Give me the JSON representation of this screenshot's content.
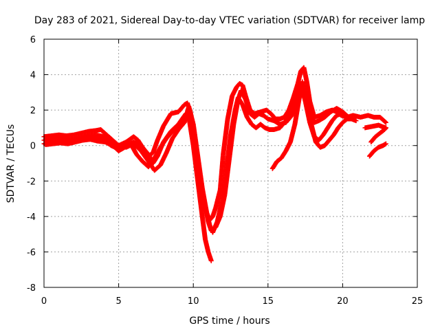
{
  "chart_data": {
    "type": "scatter",
    "title": "Day 283 of 2021, Sidereal Day-to-day VTEC variation (SDTVAR) for receiver lamp",
    "xlabel": "GPS time / hours",
    "ylabel": "SDTVAR / TECUs",
    "xlim": [
      0,
      25
    ],
    "ylim": [
      -8,
      6
    ],
    "xticks": [
      "0",
      "5",
      "10",
      "15",
      "20",
      "25"
    ],
    "yticks": [
      "-8",
      "-6",
      "-4",
      "-2",
      "0",
      "2",
      "4",
      "6"
    ],
    "grid": true,
    "marker": "plus",
    "color": "#ff0000",
    "series": [
      {
        "x": [
          0.0,
          0.5,
          1.0,
          1.5,
          2.0,
          2.5,
          3.0,
          3.5,
          3.8,
          4.2,
          4.6,
          5.0,
          5.5,
          6.0,
          6.3,
          6.6,
          7.0,
          7.3,
          7.6,
          8.0,
          8.5,
          9.0,
          9.4,
          9.6,
          9.8,
          10.0,
          10.3,
          10.6,
          10.9,
          11.1,
          11.3,
          11.5,
          11.8,
          12.0,
          12.3,
          12.6,
          12.9,
          13.1,
          13.3,
          13.5,
          13.8,
          14.1,
          14.5,
          14.9,
          15.2,
          15.5,
          15.8,
          16.1,
          16.4,
          16.7,
          17.0,
          17.2,
          17.4,
          17.6,
          17.8,
          18.1,
          18.5,
          18.9,
          19.3,
          19.6,
          19.9,
          20.3,
          20.7,
          21.2,
          21.7,
          22.1,
          22.5,
          22.9
        ],
        "y": [
          0.5,
          0.55,
          0.6,
          0.55,
          0.6,
          0.7,
          0.8,
          0.85,
          0.9,
          0.6,
          0.3,
          0.0,
          0.2,
          0.5,
          0.3,
          -0.1,
          -0.6,
          -0.4,
          0.3,
          1.1,
          1.8,
          1.9,
          2.3,
          2.4,
          1.9,
          0.8,
          -1.0,
          -2.6,
          -3.8,
          -4.2,
          -4.0,
          -3.5,
          -2.5,
          -0.5,
          1.5,
          2.8,
          3.3,
          3.5,
          3.4,
          2.8,
          2.0,
          1.8,
          1.9,
          2.0,
          1.8,
          1.5,
          1.5,
          1.6,
          2.0,
          2.7,
          3.5,
          4.2,
          4.4,
          3.6,
          2.5,
          1.6,
          1.7,
          1.9,
          2.0,
          1.9,
          1.7,
          1.6,
          1.7,
          1.6,
          1.7,
          1.6,
          1.6,
          1.3
        ]
      },
      {
        "x": [
          0.0,
          0.5,
          1.0,
          1.5,
          2.0,
          2.5,
          3.0,
          3.5,
          4.0,
          4.5,
          5.0,
          5.5,
          6.0,
          6.5,
          7.0,
          7.3,
          7.6,
          8.0,
          8.5,
          9.0,
          9.5,
          9.8,
          10.1,
          10.4,
          10.7,
          11.0,
          11.2,
          11.5,
          11.8,
          12.1,
          12.4,
          12.7,
          13.0,
          13.2,
          13.5,
          13.8,
          14.1,
          14.4,
          14.7,
          15.0,
          15.4,
          15.8,
          16.2,
          16.6,
          16.9,
          17.2,
          17.5,
          17.8,
          18.1,
          18.4,
          18.8,
          19.2,
          19.6,
          20.0,
          20.4
        ],
        "y": [
          0.1,
          0.2,
          0.25,
          0.2,
          0.3,
          0.4,
          0.5,
          0.45,
          0.3,
          0.0,
          -0.2,
          0.0,
          0.2,
          0.0,
          -0.5,
          -1.0,
          -0.6,
          0.2,
          0.8,
          1.2,
          1.8,
          1.5,
          0.5,
          -1.4,
          -3.0,
          -4.3,
          -4.8,
          -4.6,
          -4.0,
          -2.8,
          -0.8,
          1.2,
          2.6,
          3.1,
          2.6,
          1.8,
          1.6,
          1.8,
          1.7,
          1.5,
          1.4,
          1.2,
          1.3,
          1.7,
          2.4,
          3.1,
          2.6,
          1.8,
          1.3,
          1.4,
          1.6,
          1.9,
          2.1,
          1.9,
          1.6
        ]
      },
      {
        "x": [
          0.0,
          0.5,
          1.0,
          1.5,
          2.0,
          2.5,
          3.0,
          3.5,
          4.0,
          4.5,
          5.0,
          5.5,
          6.0,
          6.5,
          7.0,
          7.4,
          7.8,
          8.2,
          8.6,
          9.0,
          9.4,
          9.7,
          10.0,
          10.3,
          10.6,
          10.9,
          11.1,
          11.3,
          11.6,
          11.9,
          12.2,
          12.5,
          12.8,
          13.0,
          13.3,
          13.6,
          13.9,
          14.2,
          14.5,
          14.8,
          15.1,
          15.4,
          15.8,
          16.2,
          16.6,
          17.0,
          17.2,
          17.5,
          17.8,
          18.1,
          18.4,
          18.7,
          19.0,
          19.3,
          19.6,
          19.9,
          20.2
        ],
        "y": [
          0.3,
          0.4,
          0.45,
          0.4,
          0.35,
          0.45,
          0.55,
          0.6,
          0.5,
          0.25,
          0.0,
          -0.1,
          0.1,
          -0.3,
          -0.9,
          -1.4,
          -1.1,
          -0.4,
          0.4,
          0.9,
          1.3,
          2.2,
          1.2,
          -0.6,
          -2.4,
          -3.8,
          -4.5,
          -4.9,
          -4.3,
          -3.2,
          -1.4,
          0.6,
          2.0,
          2.7,
          2.3,
          1.6,
          1.2,
          1.0,
          1.2,
          1.0,
          0.9,
          0.9,
          1.0,
          1.4,
          2.2,
          3.2,
          3.5,
          2.5,
          1.3,
          0.5,
          0.3,
          0.6,
          1.0,
          1.4,
          1.7,
          1.8,
          1.7
        ]
      },
      {
        "x": [
          0.1,
          0.6,
          1.1,
          1.6,
          2.1,
          2.6,
          3.1,
          3.6,
          4.1,
          4.6,
          5.0,
          5.4,
          5.8,
          6.2,
          6.6,
          7.0,
          7.4,
          7.8,
          8.2,
          8.6,
          9.0,
          9.4,
          9.7,
          10.0,
          10.3,
          10.6,
          10.8,
          11.0,
          11.2
        ],
        "y": [
          0.05,
          0.1,
          0.15,
          0.1,
          0.2,
          0.3,
          0.35,
          0.25,
          0.2,
          0.0,
          -0.3,
          -0.1,
          0.1,
          -0.5,
          -0.9,
          -1.2,
          -0.7,
          -0.1,
          0.4,
          0.8,
          1.0,
          1.5,
          1.6,
          0.0,
          -2.0,
          -4.0,
          -5.3,
          -6.0,
          -6.5
        ]
      },
      {
        "x": [
          15.3,
          15.6,
          15.9,
          16.2,
          16.5,
          16.8,
          17.1,
          17.3,
          17.6,
          17.9,
          18.2,
          18.5,
          18.8,
          19.1,
          19.4,
          19.7,
          20.0,
          20.3,
          20.6,
          20.9
        ],
        "y": [
          -1.3,
          -0.9,
          -0.7,
          -0.3,
          0.2,
          1.2,
          2.7,
          3.6,
          2.6,
          1.2,
          0.2,
          -0.1,
          0.0,
          0.3,
          0.6,
          1.0,
          1.3,
          1.5,
          1.5,
          1.4
        ]
      },
      {
        "x": [
          21.5,
          21.8,
          22.1,
          22.4,
          22.7,
          22.9
        ],
        "y": [
          1.0,
          1.05,
          1.1,
          1.15,
          1.05,
          1.0
        ]
      },
      {
        "x": [
          21.9,
          22.2,
          22.5,
          22.8,
          22.9
        ],
        "y": [
          0.2,
          0.5,
          0.7,
          0.9,
          1.0
        ]
      },
      {
        "x": [
          21.8,
          22.1,
          22.4,
          22.7,
          22.9
        ],
        "y": [
          -0.6,
          -0.3,
          -0.1,
          0.0,
          0.1
        ]
      }
    ]
  }
}
